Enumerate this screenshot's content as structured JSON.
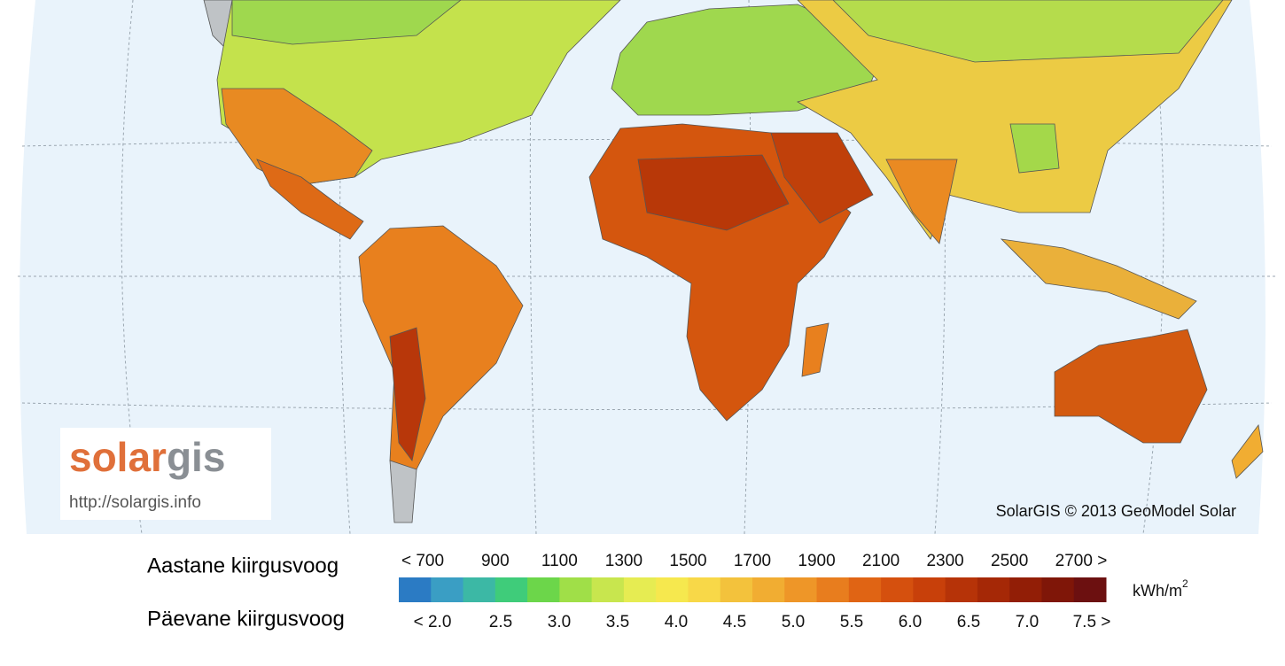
{
  "logo": {
    "brand_a": "solar",
    "brand_b": "gis",
    "url": "http://solargis.info"
  },
  "credit": "SolarGIS © 2013 GeoModel Solar",
  "legend": {
    "annual_label": "Aastane kiirgusvoog",
    "daily_label": "Päevane kiirgusvoog",
    "annual_ticks": [
      "< 700",
      "900",
      "1100",
      "1300",
      "1500",
      "1700",
      "1900",
      "2100",
      "2300",
      "2500",
      "2700 >"
    ],
    "daily_ticks": [
      "< 2.0",
      "2.5",
      "3.0",
      "3.5",
      "4.0",
      "4.5",
      "5.0",
      "5.5",
      "6.0",
      "6.5",
      "7.0",
      "7.5 >"
    ],
    "unit": "kWh/m",
    "unit_sup": "2",
    "colors": [
      "#2b7bc4",
      "#3a9ec4",
      "#3cb8a5",
      "#3fcc7a",
      "#6cd64a",
      "#a0df48",
      "#c8e64e",
      "#e6ec52",
      "#f6e84e",
      "#f8d848",
      "#f3c23c",
      "#f1ad32",
      "#ee9628",
      "#e87d1e",
      "#e06414",
      "#d5500e",
      "#c8400a",
      "#b63308",
      "#a52806",
      "#921e06",
      "#7f1608",
      "#6c1010"
    ]
  }
}
